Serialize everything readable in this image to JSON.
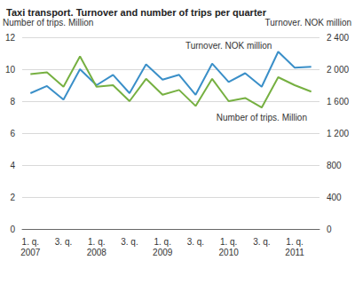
{
  "chart_data": {
    "type": "line",
    "title": "Taxi transport. Turnover and number of trips per quarter",
    "ylabel": "Number of trips. Million",
    "y2label": "Turnover. NOK million",
    "categories": [
      "1. q.\n2007",
      null,
      "3. q.",
      null,
      "1. q.\n2008",
      null,
      "3. q.",
      null,
      "1. q.\n2009",
      null,
      "3. q.",
      null,
      "1. q.\n2010",
      null,
      "3. q.",
      null,
      "1. q.\n2011",
      null
    ],
    "series": [
      {
        "name": "Turnover. NOK million",
        "color": "#3a8fc8",
        "axis": "y2",
        "values": [
          1700,
          1790,
          1620,
          2000,
          1800,
          1930,
          1700,
          2060,
          1870,
          1930,
          1680,
          2070,
          1840,
          1950,
          1780,
          2220,
          2020,
          2030
        ]
      },
      {
        "name": "Number of trips. Million",
        "color": "#76b041",
        "values": [
          9.7,
          9.8,
          8.9,
          10.8,
          8.9,
          9.0,
          8.0,
          9.4,
          8.4,
          8.7,
          7.7,
          9.4,
          8.0,
          8.2,
          7.6,
          9.5,
          9.0,
          8.6
        ]
      }
    ],
    "annotations": [
      {
        "text": "Turnover. NOK million",
        "x": 12,
        "y": 2300,
        "axis": "y2"
      },
      {
        "text": "Number of trips. Million",
        "x": 14,
        "y": 7.0
      }
    ],
    "ylim": [
      0,
      12
    ],
    "yticks": [
      0,
      2,
      4,
      6,
      8,
      10,
      12
    ],
    "y2lim": [
      0,
      2400
    ],
    "y2ticks": [
      0,
      400,
      800,
      {
        "value": 1200,
        "label": "1 200"
      },
      {
        "value": 1600,
        "label": "1 600"
      },
      {
        "value": 2000,
        "label": "2 000"
      },
      {
        "value": 2400,
        "label": "2 400"
      }
    ],
    "grid": true
  }
}
